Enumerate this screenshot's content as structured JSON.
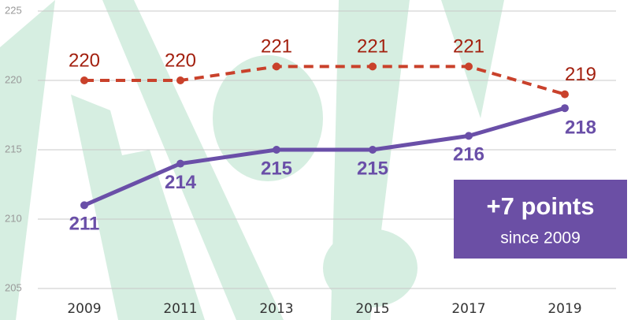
{
  "chart_data": {
    "type": "line",
    "categories": [
      "2009",
      "2011",
      "2013",
      "2015",
      "2017",
      "2019"
    ],
    "series": [
      {
        "name": null,
        "color": "#c9412b",
        "label_color": "#a3200f",
        "dashed": true,
        "values": [
          220,
          220,
          221,
          221,
          221,
          219
        ]
      },
      {
        "name": null,
        "color": "#6a4fa8",
        "label_color": "#6a4fa8",
        "dashed": false,
        "values": [
          211,
          214,
          215,
          215,
          216,
          218
        ]
      }
    ],
    "ylim": [
      205,
      225
    ],
    "yticks": [
      205,
      210,
      215,
      220,
      225
    ],
    "grid": true,
    "annotation": {
      "title": "+7 points",
      "subtitle": "since 2009",
      "color": "#6b4fa5"
    }
  }
}
